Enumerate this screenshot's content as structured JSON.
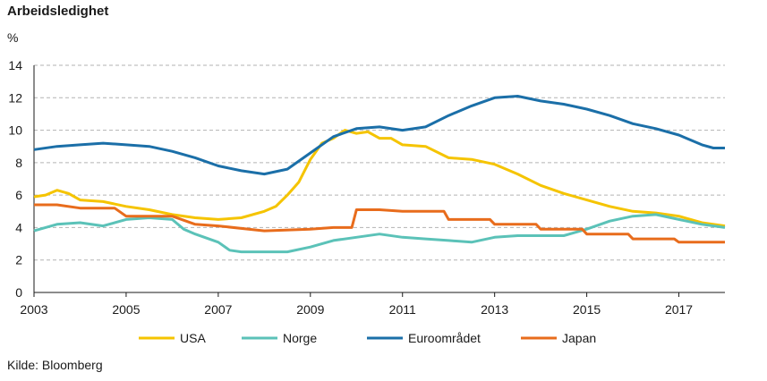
{
  "title": "Arbeidsledighet",
  "unit": "%",
  "source": "Kilde: Bloomberg",
  "chart_data": {
    "type": "line",
    "title": "Arbeidsledighet",
    "ylabel": "%",
    "xlim": [
      2003,
      2018
    ],
    "ylim": [
      0,
      14
    ],
    "y_ticks": [
      0,
      2,
      4,
      6,
      8,
      10,
      12,
      14
    ],
    "x_ticks": [
      2003,
      2005,
      2007,
      2009,
      2011,
      2013,
      2015,
      2017
    ],
    "grid": "horizontal dashed",
    "legend": "bottom",
    "series": [
      {
        "name": "USA",
        "color": "#f5c400",
        "points": [
          [
            2003,
            5.9
          ],
          [
            2003.25,
            6.0
          ],
          [
            2003.5,
            6.3
          ],
          [
            2003.75,
            6.1
          ],
          [
            2004,
            5.7
          ],
          [
            2004.5,
            5.6
          ],
          [
            2005,
            5.3
          ],
          [
            2005.5,
            5.1
          ],
          [
            2006,
            4.8
          ],
          [
            2006.5,
            4.6
          ],
          [
            2007,
            4.5
          ],
          [
            2007.5,
            4.6
          ],
          [
            2008,
            5.0
          ],
          [
            2008.25,
            5.3
          ],
          [
            2008.5,
            6.0
          ],
          [
            2008.75,
            6.8
          ],
          [
            2009,
            8.2
          ],
          [
            2009.25,
            9.2
          ],
          [
            2009.5,
            9.5
          ],
          [
            2009.75,
            10.0
          ],
          [
            2010,
            9.8
          ],
          [
            2010.25,
            9.9
          ],
          [
            2010.5,
            9.5
          ],
          [
            2010.75,
            9.5
          ],
          [
            2011,
            9.1
          ],
          [
            2011.5,
            9.0
          ],
          [
            2012,
            8.3
          ],
          [
            2012.5,
            8.2
          ],
          [
            2013,
            7.9
          ],
          [
            2013.5,
            7.3
          ],
          [
            2014,
            6.6
          ],
          [
            2014.5,
            6.1
          ],
          [
            2015,
            5.7
          ],
          [
            2015.5,
            5.3
          ],
          [
            2016,
            5.0
          ],
          [
            2016.5,
            4.9
          ],
          [
            2017,
            4.7
          ],
          [
            2017.5,
            4.3
          ],
          [
            2018,
            4.1
          ]
        ]
      },
      {
        "name": "Norge",
        "color": "#5bc2b8",
        "points": [
          [
            2003,
            3.8
          ],
          [
            2003.5,
            4.2
          ],
          [
            2004,
            4.3
          ],
          [
            2004.5,
            4.1
          ],
          [
            2005,
            4.5
          ],
          [
            2005.5,
            4.6
          ],
          [
            2006,
            4.5
          ],
          [
            2006.25,
            3.9
          ],
          [
            2006.5,
            3.6
          ],
          [
            2007,
            3.1
          ],
          [
            2007.25,
            2.6
          ],
          [
            2007.5,
            2.5
          ],
          [
            2008,
            2.5
          ],
          [
            2008.5,
            2.5
          ],
          [
            2009,
            2.8
          ],
          [
            2009.5,
            3.2
          ],
          [
            2010,
            3.4
          ],
          [
            2010.5,
            3.6
          ],
          [
            2011,
            3.4
          ],
          [
            2011.5,
            3.3
          ],
          [
            2012,
            3.2
          ],
          [
            2012.5,
            3.1
          ],
          [
            2013,
            3.4
          ],
          [
            2013.5,
            3.5
          ],
          [
            2014,
            3.5
          ],
          [
            2014.5,
            3.5
          ],
          [
            2015,
            3.9
          ],
          [
            2015.5,
            4.4
          ],
          [
            2016,
            4.7
          ],
          [
            2016.5,
            4.8
          ],
          [
            2017,
            4.5
          ],
          [
            2017.5,
            4.2
          ],
          [
            2018,
            4.0
          ]
        ]
      },
      {
        "name": "Euroområdet",
        "color": "#1b6fa8",
        "points": [
          [
            2003,
            8.8
          ],
          [
            2003.5,
            9.0
          ],
          [
            2004,
            9.1
          ],
          [
            2004.5,
            9.2
          ],
          [
            2005,
            9.1
          ],
          [
            2005.5,
            9.0
          ],
          [
            2006,
            8.7
          ],
          [
            2006.5,
            8.3
          ],
          [
            2007,
            7.8
          ],
          [
            2007.5,
            7.5
          ],
          [
            2008,
            7.3
          ],
          [
            2008.5,
            7.6
          ],
          [
            2009,
            8.6
          ],
          [
            2009.5,
            9.6
          ],
          [
            2010,
            10.1
          ],
          [
            2010.5,
            10.2
          ],
          [
            2011,
            10.0
          ],
          [
            2011.5,
            10.2
          ],
          [
            2012,
            10.9
          ],
          [
            2012.5,
            11.5
          ],
          [
            2013,
            12.0
          ],
          [
            2013.5,
            12.1
          ],
          [
            2014,
            11.8
          ],
          [
            2014.5,
            11.6
          ],
          [
            2015,
            11.3
          ],
          [
            2015.5,
            10.9
          ],
          [
            2016,
            10.4
          ],
          [
            2016.5,
            10.1
          ],
          [
            2017,
            9.7
          ],
          [
            2017.5,
            9.1
          ],
          [
            2017.75,
            8.9
          ],
          [
            2018,
            8.9
          ]
        ]
      },
      {
        "name": "Japan",
        "color": "#e86c1c",
        "points": [
          [
            2003,
            5.4
          ],
          [
            2003.5,
            5.4
          ],
          [
            2004,
            5.2
          ],
          [
            2004.75,
            5.2
          ],
          [
            2005,
            4.7
          ],
          [
            2006,
            4.7
          ],
          [
            2006.5,
            4.2
          ],
          [
            2007,
            4.1
          ],
          [
            2008,
            3.8
          ],
          [
            2009,
            3.9
          ],
          [
            2009.5,
            4.0
          ],
          [
            2009.9,
            4.0
          ],
          [
            2010,
            5.1
          ],
          [
            2010.5,
            5.1
          ],
          [
            2011,
            5.0
          ],
          [
            2011.9,
            5.0
          ],
          [
            2012,
            4.5
          ],
          [
            2012.9,
            4.5
          ],
          [
            2013,
            4.2
          ],
          [
            2013.9,
            4.2
          ],
          [
            2014,
            3.9
          ],
          [
            2014.9,
            3.9
          ],
          [
            2015,
            3.6
          ],
          [
            2015.9,
            3.6
          ],
          [
            2016,
            3.3
          ],
          [
            2016.9,
            3.3
          ],
          [
            2017,
            3.1
          ],
          [
            2018,
            3.1
          ]
        ]
      }
    ]
  }
}
